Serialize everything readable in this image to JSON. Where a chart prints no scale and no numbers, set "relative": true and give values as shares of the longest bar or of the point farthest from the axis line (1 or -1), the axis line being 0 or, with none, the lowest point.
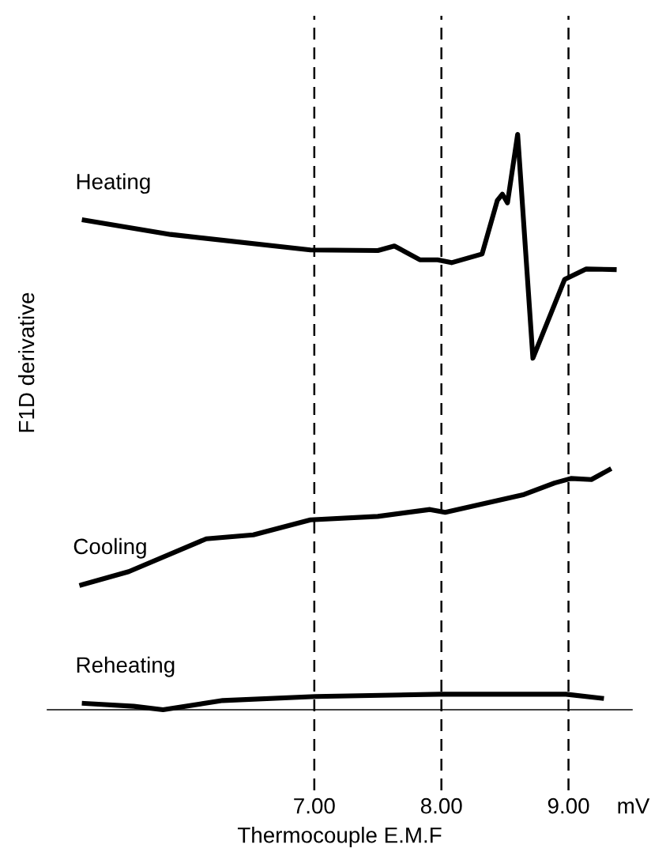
{
  "chart_data": {
    "type": "line",
    "relative": true,
    "xlabel": "Thermocouple E.M.F",
    "ylabel": "F1D derivative",
    "xlim": [
      4.9,
      9.5
    ],
    "xticks": [
      {
        "value": 7,
        "label": "7.00"
      },
      {
        "value": 8,
        "label": "8.00"
      },
      {
        "value": 9,
        "label": "9.00"
      }
    ],
    "tick_labels": "x",
    "grid": false,
    "legend": false,
    "marker": "none",
    "line_style": "solid",
    "annotations": [
      "mV"
    ],
    "ref_lines": [
      {
        "axis": "x",
        "value": 7,
        "color": "#000000",
        "line_style": "dashed"
      },
      {
        "axis": "x",
        "value": 8,
        "color": "#000000",
        "line_style": "dashed"
      },
      {
        "axis": "x",
        "value": 9,
        "color": "#000000",
        "line_style": "dashed"
      }
    ],
    "series": [
      {
        "name": "Heating",
        "color": "#000000",
        "x": [
          5.19,
          5.87,
          6.97,
          7.5,
          7.63,
          7.83,
          7.97,
          8.08,
          8.32,
          8.44,
          8.48,
          8.52,
          8.6,
          8.72,
          8.97,
          9.14,
          9.36
        ],
        "values": [
          0.851,
          0.826,
          0.799,
          0.798,
          0.806,
          0.782,
          0.782,
          0.777,
          0.792,
          0.885,
          0.896,
          0.881,
          1.0,
          0.611,
          0.748,
          0.766,
          0.765
        ]
      },
      {
        "name": "Cooling",
        "color": "#000000",
        "x": [
          5.17,
          5.54,
          6.15,
          6.52,
          6.97,
          7.5,
          7.91,
          8.03,
          8.65,
          8.89,
          9.02,
          9.18,
          9.32
        ],
        "values": [
          0.217,
          0.24,
          0.297,
          0.304,
          0.33,
          0.336,
          0.348,
          0.343,
          0.374,
          0.394,
          0.402,
          0.4,
          0.417
        ]
      },
      {
        "name": "Reheating",
        "color": "#000000",
        "x": [
          5.19,
          5.58,
          5.81,
          6.28,
          7.01,
          7.99,
          8.98,
          9.26
        ],
        "values": [
          0.011,
          0.006,
          0.0,
          0.016,
          0.023,
          0.027,
          0.027,
          0.02
        ]
      }
    ]
  }
}
